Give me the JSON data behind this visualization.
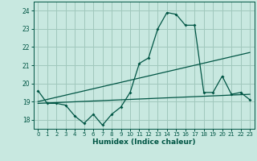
{
  "title": "",
  "xlabel": "Humidex (Indice chaleur)",
  "bg_color": "#c8e8e0",
  "grid_color": "#a0c8bc",
  "line_color": "#005544",
  "xlim": [
    -0.5,
    23.5
  ],
  "ylim": [
    17.5,
    24.5
  ],
  "yticks": [
    18,
    19,
    20,
    21,
    22,
    23,
    24
  ],
  "xticks": [
    0,
    1,
    2,
    3,
    4,
    5,
    6,
    7,
    8,
    9,
    10,
    11,
    12,
    13,
    14,
    15,
    16,
    17,
    18,
    19,
    20,
    21,
    22,
    23
  ],
  "series1": [
    19.6,
    18.9,
    18.9,
    18.8,
    18.2,
    17.8,
    18.3,
    17.7,
    18.3,
    18.7,
    19.5,
    21.1,
    21.4,
    23.0,
    23.9,
    23.8,
    23.2,
    23.2,
    19.5,
    19.5,
    20.4,
    19.4,
    19.5,
    19.1
  ],
  "series2_x": [
    0,
    23
  ],
  "series2_y": [
    19.0,
    21.7
  ],
  "series3_x": [
    0,
    23
  ],
  "series3_y": [
    18.9,
    19.4
  ]
}
